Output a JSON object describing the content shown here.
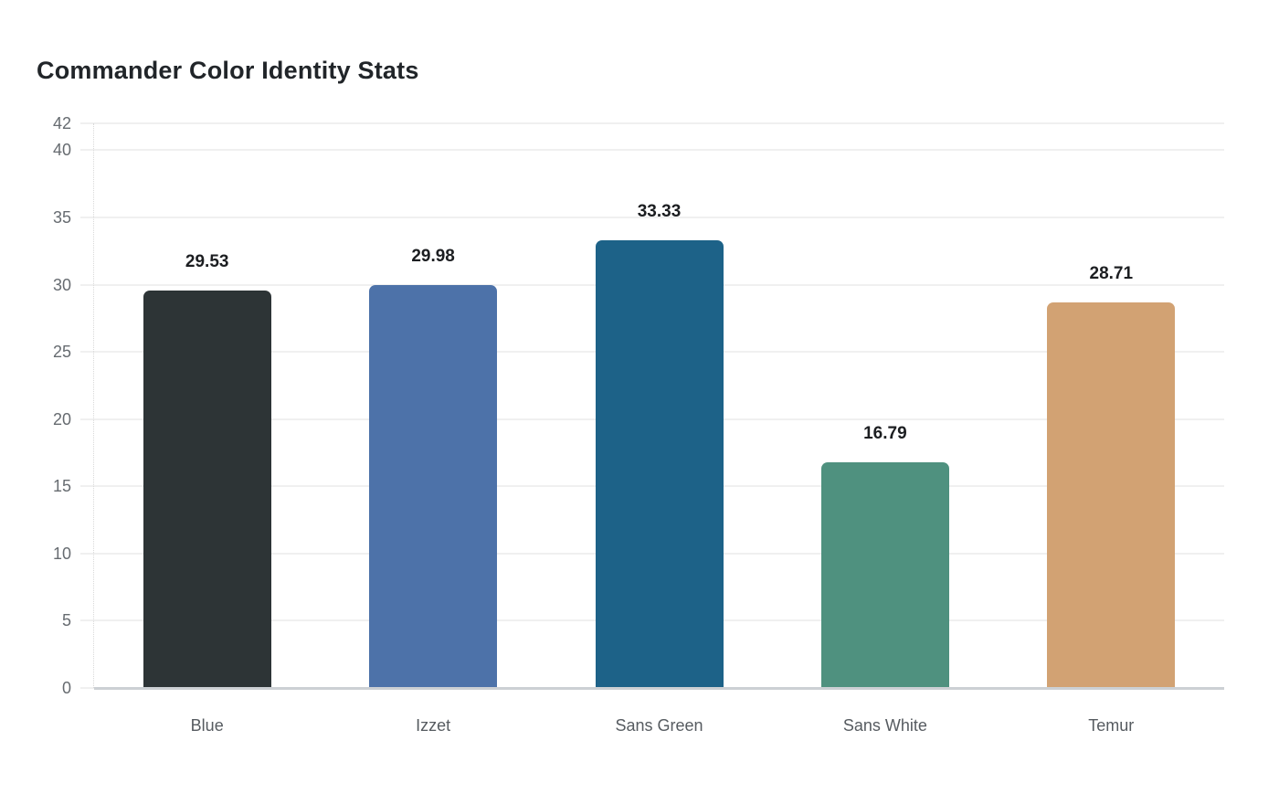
{
  "page": {
    "background": "#ffffff"
  },
  "chart_data": {
    "type": "bar",
    "title": "Commander Color Identity Stats",
    "categories": [
      "Blue",
      "Izzet",
      "Sans Green",
      "Sans White",
      "Temur"
    ],
    "values": [
      29.53,
      29.98,
      33.33,
      16.79,
      28.71
    ],
    "value_labels": [
      "29.53",
      "29.98",
      "33.33",
      "16.79",
      "28.71"
    ],
    "bar_colors": [
      "#2d3436",
      "#4d72a9",
      "#1d6288",
      "#4f917f",
      "#d2a273"
    ],
    "xlabel": "",
    "ylabel": "",
    "ylim": [
      0,
      42
    ],
    "yticks": [
      0,
      5,
      10,
      15,
      20,
      25,
      30,
      35,
      40,
      42
    ],
    "grid": "horizontal-only",
    "legend": "none",
    "value_labels_position": "above-bars",
    "colors": {
      "grid": "#f0f0f0",
      "axis_line": "#ccd0d4",
      "tick_label": "#666b70",
      "category_label": "#565b60",
      "value_label": "#1c1e21",
      "title": "#212529"
    }
  }
}
